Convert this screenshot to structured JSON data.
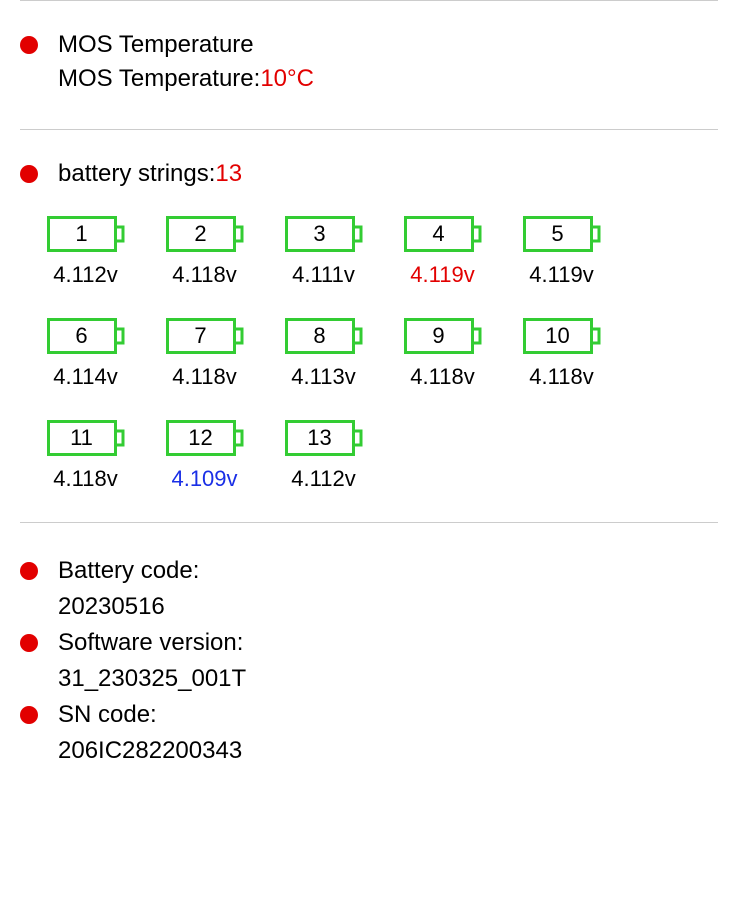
{
  "colors": {
    "bullet": "#e20000",
    "red_text": "#e20000",
    "blue_text": "#1a2fe6",
    "battery_outline": "#33cc33",
    "divider": "#cccccc"
  },
  "mos": {
    "title": "MOS Temperature",
    "label": "MOS Temperature: ",
    "value": "10°C"
  },
  "battery_strings": {
    "label": "battery strings:",
    "count": "13",
    "cells": [
      {
        "n": "1",
        "v": "4.112v",
        "v_color": "normal"
      },
      {
        "n": "2",
        "v": "4.118v",
        "v_color": "normal"
      },
      {
        "n": "3",
        "v": "4.111v",
        "v_color": "normal"
      },
      {
        "n": "4",
        "v": "4.119v",
        "v_color": "red"
      },
      {
        "n": "5",
        "v": "4.119v",
        "v_color": "normal"
      },
      {
        "n": "6",
        "v": "4.114v",
        "v_color": "normal"
      },
      {
        "n": "7",
        "v": "4.118v",
        "v_color": "normal"
      },
      {
        "n": "8",
        "v": "4.113v",
        "v_color": "normal"
      },
      {
        "n": "9",
        "v": "4.118v",
        "v_color": "normal"
      },
      {
        "n": "10",
        "v": "4.118v",
        "v_color": "normal"
      },
      {
        "n": "11",
        "v": "4.118v",
        "v_color": "normal"
      },
      {
        "n": "12",
        "v": "4.109v",
        "v_color": "blue"
      },
      {
        "n": "13",
        "v": "4.112v",
        "v_color": "normal"
      }
    ]
  },
  "info": {
    "battery_code_label": "Battery code:",
    "battery_code_value": "20230516",
    "software_version_label": "Software version:",
    "software_version_value": "31_230325_001T",
    "sn_code_label": "SN code:",
    "sn_code_value": "206IC282200343"
  }
}
